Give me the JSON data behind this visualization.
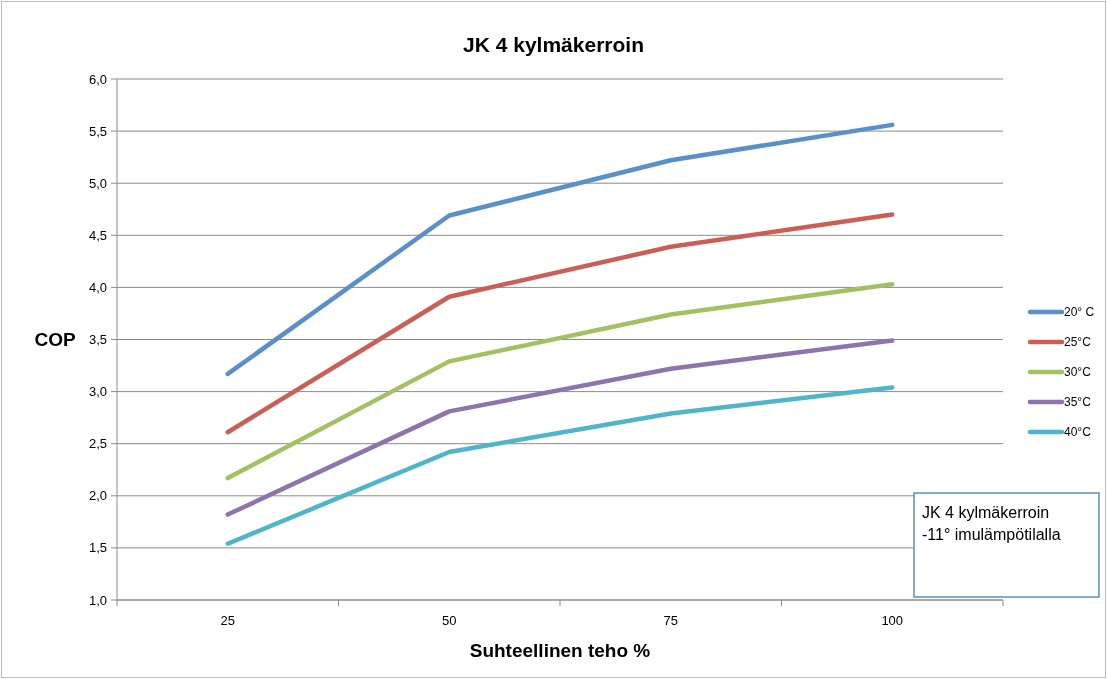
{
  "chart_data": {
    "type": "line",
    "title": "JK 4 kylmäkerroin",
    "xlabel": "Suhteellinen teho %",
    "ylabel": "COP",
    "categories": [
      "25",
      "50",
      "75",
      "100"
    ],
    "series": [
      {
        "name": "20° C",
        "color": "#5b8fc8",
        "values": [
          3.17,
          4.69,
          5.22,
          5.56
        ]
      },
      {
        "name": "25°C",
        "color": "#cc5f55",
        "values": [
          2.61,
          3.91,
          4.39,
          4.7
        ]
      },
      {
        "name": "30°C",
        "color": "#a3c161",
        "values": [
          2.17,
          3.29,
          3.74,
          4.03
        ]
      },
      {
        "name": "35°C",
        "color": "#8d74ad",
        "values": [
          1.82,
          2.81,
          3.22,
          3.49
        ]
      },
      {
        "name": "40°C",
        "color": "#4eb5cb",
        "values": [
          1.54,
          2.42,
          2.79,
          3.04
        ]
      }
    ],
    "ylim": [
      1,
      6
    ],
    "yticks": [
      {
        "value": 1,
        "label": "1,0"
      },
      {
        "value": 1.5,
        "label": "1,5"
      },
      {
        "value": 2,
        "label": "2,0"
      },
      {
        "value": 2.5,
        "label": "2,5"
      },
      {
        "value": 3,
        "label": "3,0"
      },
      {
        "value": 3.5,
        "label": "3,5"
      },
      {
        "value": 4,
        "label": "4,0"
      },
      {
        "value": 4.5,
        "label": "4,5"
      },
      {
        "value": 5,
        "label": "5,0"
      },
      {
        "value": 5.5,
        "label": "5,5"
      },
      {
        "value": 6,
        "label": "6,0"
      }
    ],
    "grid": "y",
    "legend": "right",
    "marker": "none",
    "line_style": "solid",
    "annotations": [
      "JK 4 kylmäkerroin -11° imulämpötilalla"
    ]
  }
}
